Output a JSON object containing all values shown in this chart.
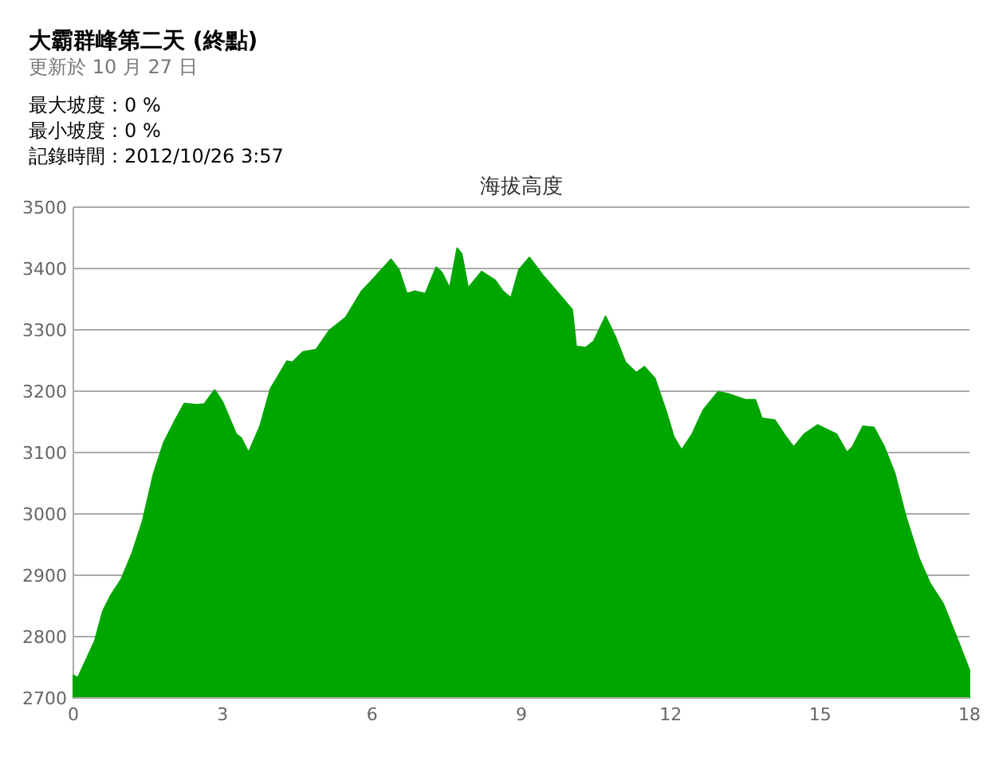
{
  "chart_data": {
    "type": "area",
    "title": "大霸群峰第二天 (終點)",
    "subtitle": "更新於 10 月 27 日",
    "annotations": [
      "最大坡度：0 %",
      "最小坡度：0 %",
      "記錄時間：2012/10/26 3:57",
      "海拔高度"
    ],
    "xlim": [
      0,
      18
    ],
    "xticks": [
      0,
      3,
      6,
      9,
      12,
      15,
      18
    ],
    "ylim": [
      2700,
      3500
    ],
    "yticks": [
      2700,
      2800,
      2900,
      3000,
      3100,
      3200,
      3300,
      3400,
      3500
    ],
    "grid": "y",
    "series": [
      {
        "color": "#00a600",
        "x": [
          0,
          0.09,
          0.21,
          0.43,
          0.59,
          0.75,
          0.96,
          1.18,
          1.39,
          1.61,
          1.82,
          2.04,
          2.23,
          2.47,
          2.63,
          2.84,
          3.0,
          3.27,
          3.37,
          3.52,
          3.75,
          3.96,
          4.29,
          4.4,
          4.61,
          4.88,
          5.14,
          5.47,
          5.79,
          6.0,
          6.38,
          6.54,
          6.7,
          6.86,
          7.07,
          7.29,
          7.4,
          7.56,
          7.71,
          7.8,
          7.93,
          8.2,
          8.47,
          8.63,
          8.79,
          8.95,
          9.16,
          9.43,
          9.75,
          10.02,
          10.1,
          10.29,
          10.45,
          10.69,
          10.88,
          11.09,
          11.31,
          11.47,
          11.68,
          11.9,
          12.06,
          12.22,
          12.43,
          12.65,
          12.95,
          13.18,
          13.5,
          13.7,
          13.83,
          14.09,
          14.31,
          14.47,
          14.68,
          14.95,
          15.33,
          15.54,
          15.65,
          15.86,
          16.08,
          16.29,
          16.5,
          16.72,
          16.99,
          17.2,
          17.47,
          17.79,
          18
        ],
        "values": [
          2737,
          2733,
          2754,
          2793,
          2841,
          2867,
          2893,
          2936,
          2988,
          3065,
          3117,
          3152,
          3180,
          3178,
          3179,
          3202,
          3182,
          3130,
          3124,
          3100,
          3143,
          3204,
          3249,
          3247,
          3264,
          3268,
          3299,
          3320,
          3363,
          3381,
          3415,
          3398,
          3359,
          3363,
          3359,
          3402,
          3394,
          3368,
          3433,
          3424,
          3368,
          3395,
          3381,
          3363,
          3352,
          3398,
          3418,
          3389,
          3359,
          3333,
          3273,
          3271,
          3281,
          3322,
          3290,
          3247,
          3230,
          3240,
          3221,
          3169,
          3126,
          3104,
          3130,
          3169,
          3199,
          3195,
          3186,
          3186,
          3156,
          3153,
          3126,
          3109,
          3130,
          3145,
          3130,
          3100,
          3109,
          3143,
          3141,
          3109,
          3066,
          2996,
          2927,
          2888,
          2854,
          2789,
          2745
        ]
      }
    ]
  }
}
